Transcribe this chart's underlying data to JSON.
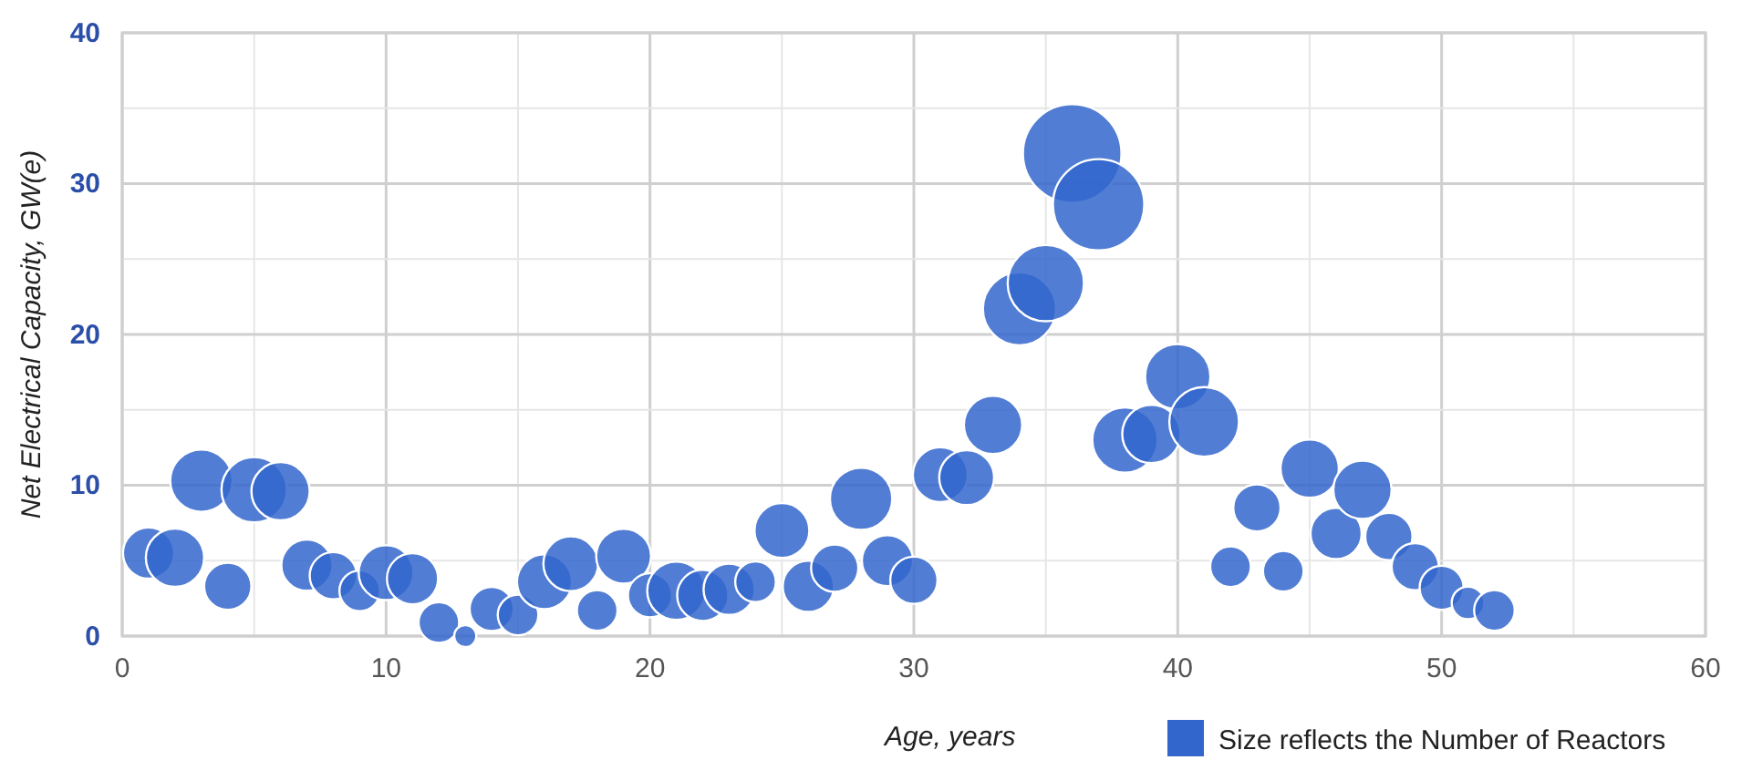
{
  "chart_data": {
    "type": "bubble",
    "xlabel": "Age, years",
    "ylabel": "Net Electrical Capacity, GW(e)",
    "xlim": [
      0,
      60
    ],
    "ylim": [
      0,
      40
    ],
    "xticks": [
      0,
      {
        "value": 5,
        "label": null
      },
      10,
      {
        "value": 15,
        "label": null
      },
      20,
      {
        "value": 25,
        "label": null
      },
      30,
      {
        "value": 35,
        "label": null
      },
      40,
      {
        "value": 45,
        "label": null
      },
      50,
      {
        "value": 55,
        "label": null
      },
      60
    ],
    "yticks": [
      0,
      {
        "value": 5,
        "label": null
      },
      10,
      {
        "value": 15,
        "label": null
      },
      20,
      {
        "value": 25,
        "label": null
      },
      30,
      {
        "value": 35,
        "label": null
      },
      40
    ],
    "grid": true,
    "legend": "bottom right",
    "series": [
      {
        "name": "Size reflects the Number of Reactors",
        "color": "#3366cc",
        "x": [
          1,
          2,
          3,
          4,
          5,
          6,
          7,
          8,
          9,
          10,
          11,
          12,
          13,
          14,
          15,
          16,
          17,
          18,
          19,
          20,
          21,
          22,
          23,
          24,
          25,
          26,
          27,
          28,
          29,
          30,
          31,
          32,
          33,
          34,
          35,
          36,
          37,
          38,
          39,
          40,
          41,
          42,
          43,
          44,
          45,
          46,
          47,
          48,
          49,
          50,
          51,
          52
        ],
        "values": [
          5.5,
          5.2,
          10.3,
          3.3,
          9.7,
          9.6,
          4.7,
          4.0,
          3.0,
          4.2,
          3.8,
          0.9,
          0,
          1.8,
          1.4,
          3.6,
          4.8,
          1.7,
          5.3,
          2.7,
          3.0,
          2.7,
          3.1,
          3.6,
          7.0,
          3.3,
          4.5,
          9.1,
          5.0,
          3.7,
          10.7,
          10.5,
          14.0,
          21.7,
          23.4,
          32.0,
          28.6,
          13.0,
          13.4,
          17.2,
          14.2,
          4.6,
          8.5,
          4.3,
          11.1,
          6.8,
          9.7,
          6.6,
          4.6,
          3.2,
          2.2,
          1.7
        ],
        "sizes": [
          0.27,
          0.35,
          0.4,
          0.23,
          0.44,
          0.35,
          0.27,
          0.23,
          0.17,
          0.31,
          0.27,
          0.17,
          0.05,
          0.2,
          0.17,
          0.31,
          0.31,
          0.17,
          0.31,
          0.2,
          0.35,
          0.27,
          0.27,
          0.17,
          0.31,
          0.27,
          0.23,
          0.4,
          0.27,
          0.23,
          0.31,
          0.31,
          0.35,
          0.55,
          0.6,
          1,
          0.86,
          0.44,
          0.35,
          0.44,
          0.5,
          0.17,
          0.23,
          0.17,
          0.35,
          0.27,
          0.35,
          0.23,
          0.23,
          0.2,
          0.11,
          0.17
        ]
      }
    ]
  }
}
